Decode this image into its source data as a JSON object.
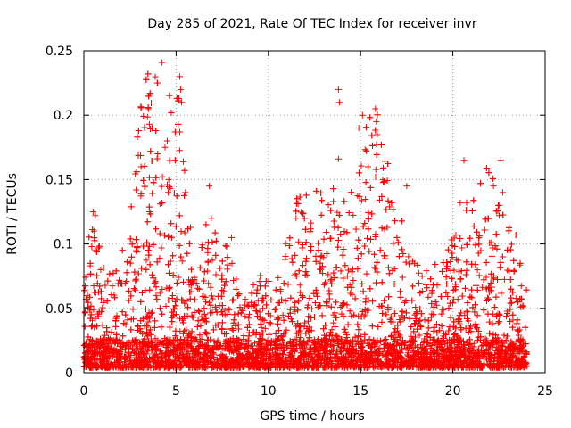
{
  "chart_data": {
    "type": "scatter",
    "title": "Day 285 of 2021, Rate Of TEC Index for receiver invr",
    "xlabel": "GPS time / hours",
    "ylabel": "ROTI / TECUs",
    "xlim": [
      0,
      25
    ],
    "ylim": [
      0,
      0.25
    ],
    "xticks": [
      0,
      5,
      10,
      15,
      20,
      25
    ],
    "yticks": [
      0,
      0.05,
      0.1,
      0.15,
      0.2,
      0.25
    ],
    "xtick_labels": [
      "0",
      "5",
      "10",
      "15",
      "20",
      "25"
    ],
    "ytick_labels": [
      "0",
      "0.05",
      "0.1",
      "0.15",
      "0.2",
      "0.25"
    ],
    "grid": true,
    "marker": "+",
    "marker_color": "#ff0000",
    "series": [
      {
        "peaks": [
          {
            "x": 0.5,
            "y": 0.125
          },
          {
            "x": 0.55,
            "y": 0.11
          },
          {
            "x": 0.6,
            "y": 0.095
          },
          {
            "x": 3.1,
            "y": 0.16
          },
          {
            "x": 3.5,
            "y": 0.205
          },
          {
            "x": 3.55,
            "y": 0.193
          },
          {
            "x": 3.7,
            "y": 0.19
          },
          {
            "x": 4.0,
            "y": 0.17
          },
          {
            "x": 4.4,
            "y": 0.175
          },
          {
            "x": 4.6,
            "y": 0.15
          },
          {
            "x": 5.2,
            "y": 0.23
          },
          {
            "x": 5.25,
            "y": 0.22
          },
          {
            "x": 5.3,
            "y": 0.21
          },
          {
            "x": 5.2,
            "y": 0.187
          },
          {
            "x": 5.5,
            "y": 0.14
          },
          {
            "x": 6.8,
            "y": 0.145
          },
          {
            "x": 6.9,
            "y": 0.12
          },
          {
            "x": 8.0,
            "y": 0.105
          },
          {
            "x": 11.5,
            "y": 0.12
          },
          {
            "x": 13.8,
            "y": 0.22
          },
          {
            "x": 13.85,
            "y": 0.21
          },
          {
            "x": 13.8,
            "y": 0.166
          },
          {
            "x": 14.9,
            "y": 0.19
          },
          {
            "x": 15.1,
            "y": 0.2
          },
          {
            "x": 15.8,
            "y": 0.205
          },
          {
            "x": 15.85,
            "y": 0.195
          },
          {
            "x": 15.9,
            "y": 0.185
          },
          {
            "x": 15.4,
            "y": 0.16
          },
          {
            "x": 16.2,
            "y": 0.15
          },
          {
            "x": 17.5,
            "y": 0.145
          },
          {
            "x": 20.6,
            "y": 0.165
          },
          {
            "x": 20.4,
            "y": 0.132
          },
          {
            "x": 22.2,
            "y": 0.145
          },
          {
            "x": 22.6,
            "y": 0.165
          },
          {
            "x": 22.7,
            "y": 0.14
          },
          {
            "x": 22.5,
            "y": 0.13
          }
        ]
      }
    ]
  }
}
